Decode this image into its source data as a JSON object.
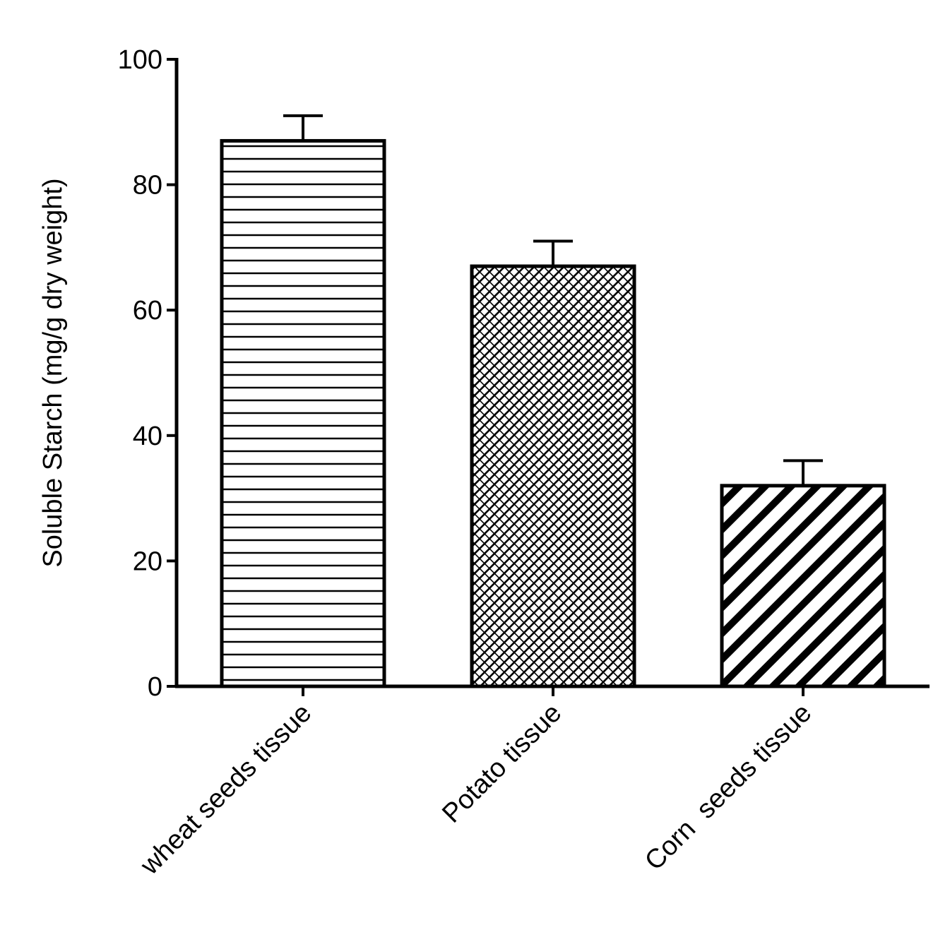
{
  "chart_data": {
    "type": "bar",
    "title": "",
    "xlabel": "",
    "ylabel": "Soluble Starch (mg/g dry weight)",
    "ylim": [
      0,
      100
    ],
    "yticks": [
      0,
      20,
      40,
      60,
      80,
      100
    ],
    "grid": false,
    "legend": "none",
    "categories": [
      "wheat seeds tissue",
      "Potato tissue",
      "Corn  seeds tissue"
    ],
    "values": [
      87,
      67,
      32
    ],
    "errors": [
      4,
      4,
      4
    ],
    "patterns": [
      "horizontal-lines",
      "crosshatch-diagonal",
      "diagonal-stripes"
    ],
    "colors": {
      "stroke": "#000000",
      "fill": "#ffffff"
    }
  }
}
